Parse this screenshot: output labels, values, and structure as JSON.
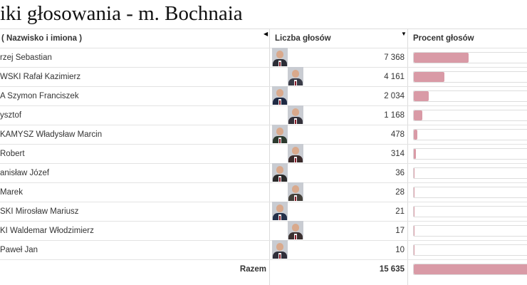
{
  "title": "iki głosowania - m. Bochnaia",
  "headers": {
    "name": "( Nazwisko i imiona )",
    "votes": "Liczba głosów",
    "percent": "Procent głosów"
  },
  "accent_bar_color": "#d99aa6",
  "rows": [
    {
      "name": "rzej Sebastian",
      "votes": "7 368",
      "fraction": 0.471
    },
    {
      "name": "WSKI Rafał Kazimierz",
      "votes": "4 161",
      "fraction": 0.266
    },
    {
      "name": "A Szymon Franciszek",
      "votes": "2 034",
      "fraction": 0.13
    },
    {
      "name": "ysztof",
      "votes": "1 168",
      "fraction": 0.075
    },
    {
      "name": "KAMYSZ Władysław Marcin",
      "votes": "478",
      "fraction": 0.031
    },
    {
      "name": "Robert",
      "votes": "314",
      "fraction": 0.02
    },
    {
      "name": "anisław Józef",
      "votes": "36",
      "fraction": 0.002
    },
    {
      "name": "Marek",
      "votes": "28",
      "fraction": 0.002
    },
    {
      "name": "SKI Mirosław Mariusz",
      "votes": "21",
      "fraction": 0.001
    },
    {
      "name": "KI Waldemar Włodzimierz",
      "votes": "17",
      "fraction": 0.001
    },
    {
      "name": "Paweł Jan",
      "votes": "10",
      "fraction": 0.001
    }
  ],
  "total": {
    "label": "Razem",
    "votes": "15 635",
    "fraction": 1.0
  }
}
